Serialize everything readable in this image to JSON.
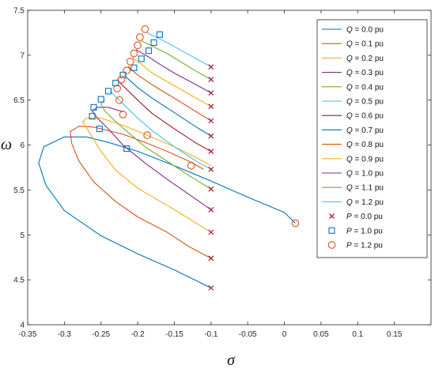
{
  "chart_data": {
    "type": "line",
    "title": "",
    "xlabel": "σ",
    "ylabel": "ω",
    "xlim": [
      -0.35,
      0.2
    ],
    "ylim": [
      4,
      7.5
    ],
    "x_ticks": [
      -0.35,
      -0.3,
      -0.25,
      -0.2,
      -0.15,
      -0.1,
      -0.05,
      0,
      0.05,
      0.1,
      0.15
    ],
    "x_tick_labels": [
      "-0.35",
      "-0.3",
      "-0.25",
      "-0.2",
      "-0.15",
      "-0.1",
      "-0.05",
      "0",
      "0.05",
      "0.1",
      "0.15"
    ],
    "y_ticks": [
      4,
      4.5,
      5,
      5.5,
      6,
      6.5,
      7,
      7.5
    ],
    "y_tick_labels": [
      "4",
      "4.5",
      "5",
      "5.5",
      "6",
      "6.5",
      "7",
      "7.5"
    ],
    "grid": false,
    "legend_position": "top-right",
    "series": [
      {
        "name": "Q = 0.0 pu",
        "legend_symbol": "Q",
        "legend_rest": " = 0.0 pu",
        "color": "#0072bd",
        "points": [
          [
            -0.1,
            4.41
          ],
          [
            -0.12,
            4.49
          ],
          [
            -0.15,
            4.61
          ],
          [
            -0.2,
            4.79
          ],
          [
            -0.25,
            4.99
          ],
          [
            -0.3,
            5.27
          ],
          [
            -0.325,
            5.55
          ],
          [
            -0.335,
            5.8
          ],
          [
            -0.328,
            5.98
          ],
          [
            -0.3,
            6.09
          ],
          [
            -0.27,
            6.09
          ],
          [
            -0.24,
            6.03
          ],
          [
            -0.2,
            5.93
          ],
          [
            -0.15,
            5.77
          ],
          [
            -0.1,
            5.6
          ],
          [
            -0.05,
            5.42
          ],
          [
            0,
            5.25
          ],
          [
            0.015,
            5.13
          ]
        ]
      },
      {
        "name": "Q = 0.1 pu",
        "legend_symbol": "Q",
        "legend_rest": " = 0.1 pu",
        "color": "#d95319",
        "points": [
          [
            -0.1,
            4.74
          ],
          [
            -0.13,
            4.87
          ],
          [
            -0.16,
            5.03
          ],
          [
            -0.2,
            5.2
          ],
          [
            -0.23,
            5.37
          ],
          [
            -0.26,
            5.59
          ],
          [
            -0.28,
            5.82
          ],
          [
            -0.29,
            6.02
          ],
          [
            -0.292,
            6.15
          ],
          [
            -0.28,
            6.21
          ],
          [
            -0.26,
            6.2
          ],
          [
            -0.22,
            6.12
          ],
          [
            -0.19,
            6.03
          ],
          [
            -0.16,
            5.93
          ],
          [
            -0.13,
            5.82
          ],
          [
            -0.11,
            5.73
          ]
        ]
      },
      {
        "name": "Q = 0.2 pu",
        "legend_symbol": "Q",
        "legend_rest": " = 0.2 pu",
        "color": "#edb120",
        "points": [
          [
            -0.1,
            5.03
          ],
          [
            -0.12,
            5.13
          ],
          [
            -0.16,
            5.33
          ],
          [
            -0.2,
            5.52
          ],
          [
            -0.23,
            5.72
          ],
          [
            -0.25,
            5.93
          ],
          [
            -0.265,
            6.13
          ],
          [
            -0.275,
            6.26
          ],
          [
            -0.27,
            6.3
          ],
          [
            -0.25,
            6.3
          ],
          [
            -0.22,
            6.22
          ],
          [
            -0.19,
            6.12
          ],
          [
            -0.15,
            5.98
          ],
          [
            -0.12,
            5.86
          ],
          [
            -0.1,
            5.77
          ]
        ]
      },
      {
        "name": "Q = 0.3 pu",
        "legend_symbol": "Q",
        "legend_rest": " = 0.3 pu",
        "color": "#7e2f8e",
        "points": [
          [
            -0.1,
            5.28
          ],
          [
            -0.13,
            5.45
          ],
          [
            -0.16,
            5.62
          ],
          [
            -0.19,
            5.8
          ],
          [
            -0.22,
            6.0
          ],
          [
            -0.24,
            6.18
          ],
          [
            -0.255,
            6.3
          ],
          [
            -0.262,
            6.38
          ],
          [
            -0.255,
            6.42
          ],
          [
            -0.24,
            6.42
          ],
          [
            -0.22,
            6.37
          ]
        ]
      },
      {
        "name": "Q = 0.4 pu",
        "legend_symbol": "Q",
        "legend_rest": " = 0.4 pu",
        "color": "#77ac30",
        "points": [
          [
            -0.1,
            5.51
          ],
          [
            -0.13,
            5.66
          ],
          [
            -0.16,
            5.82
          ],
          [
            -0.19,
            5.98
          ],
          [
            -0.21,
            6.12
          ],
          [
            -0.23,
            6.26
          ],
          [
            -0.245,
            6.38
          ],
          [
            -0.25,
            6.46
          ],
          [
            -0.245,
            6.5
          ]
        ]
      },
      {
        "name": "Q = 0.5 pu",
        "legend_symbol": "Q",
        "legend_rest": " = 0.5 pu",
        "color": "#4dbeee",
        "points": [
          [
            -0.1,
            5.73
          ],
          [
            -0.12,
            5.82
          ],
          [
            -0.15,
            5.98
          ],
          [
            -0.18,
            6.16
          ],
          [
            -0.2,
            6.3
          ],
          [
            -0.22,
            6.46
          ],
          [
            -0.235,
            6.58
          ],
          [
            -0.238,
            6.6
          ]
        ]
      },
      {
        "name": "Q = 0.6 pu",
        "legend_symbol": "Q",
        "legend_rest": " = 0.6 pu",
        "color": "#a2142f",
        "points": [
          [
            -0.1,
            5.93
          ],
          [
            -0.12,
            6.02
          ],
          [
            -0.15,
            6.18
          ],
          [
            -0.18,
            6.35
          ],
          [
            -0.2,
            6.5
          ],
          [
            -0.215,
            6.62
          ],
          [
            -0.225,
            6.7
          ],
          [
            -0.228,
            6.73
          ]
        ]
      },
      {
        "name": "Q = 0.7 pu",
        "legend_symbol": "Q",
        "legend_rest": " = 0.7 pu",
        "color": "#0072bd",
        "points": [
          [
            -0.1,
            6.1
          ],
          [
            -0.12,
            6.2
          ],
          [
            -0.15,
            6.36
          ],
          [
            -0.18,
            6.52
          ],
          [
            -0.2,
            6.64
          ],
          [
            -0.215,
            6.75
          ],
          [
            -0.218,
            6.78
          ]
        ]
      },
      {
        "name": "Q = 0.8 pu",
        "legend_symbol": "Q",
        "legend_rest": " = 0.8 pu",
        "color": "#d95319",
        "points": [
          [
            -0.1,
            6.27
          ],
          [
            -0.12,
            6.37
          ],
          [
            -0.15,
            6.52
          ],
          [
            -0.18,
            6.67
          ],
          [
            -0.2,
            6.78
          ],
          [
            -0.21,
            6.85
          ],
          [
            -0.213,
            6.88
          ]
        ]
      },
      {
        "name": "Q = 0.9 pu",
        "legend_symbol": "Q",
        "legend_rest": " = 0.9 pu",
        "color": "#edb120",
        "points": [
          [
            -0.1,
            6.43
          ],
          [
            -0.12,
            6.52
          ],
          [
            -0.15,
            6.66
          ],
          [
            -0.18,
            6.8
          ],
          [
            -0.195,
            6.9
          ],
          [
            -0.205,
            6.96
          ],
          [
            -0.207,
            6.98
          ]
        ]
      },
      {
        "name": "Q = 1.0 pu",
        "legend_symbol": "Q",
        "legend_rest": " = 1.0 pu",
        "color": "#7e2f8e",
        "points": [
          [
            -0.1,
            6.58
          ],
          [
            -0.12,
            6.67
          ],
          [
            -0.15,
            6.8
          ],
          [
            -0.17,
            6.9
          ],
          [
            -0.185,
            6.98
          ],
          [
            -0.2,
            7.05
          ],
          [
            -0.202,
            7.06
          ]
        ]
      },
      {
        "name": "Q = 1.1 pu",
        "legend_symbol": "Q",
        "legend_rest": " = 1.1 pu",
        "color": "#77ac30",
        "points": [
          [
            -0.1,
            6.73
          ],
          [
            -0.12,
            6.82
          ],
          [
            -0.14,
            6.92
          ],
          [
            -0.16,
            7.02
          ],
          [
            -0.18,
            7.1
          ],
          [
            -0.19,
            7.14
          ],
          [
            -0.195,
            7.16
          ]
        ]
      },
      {
        "name": "Q = 1.2 pu",
        "legend_symbol": "Q",
        "legend_rest": " = 1.2 pu",
        "color": "#4dbeee",
        "points": [
          [
            -0.1,
            6.87
          ],
          [
            -0.12,
            6.96
          ],
          [
            -0.14,
            7.05
          ],
          [
            -0.16,
            7.14
          ],
          [
            -0.175,
            7.2
          ],
          [
            -0.185,
            7.24
          ],
          [
            -0.188,
            7.26
          ]
        ]
      }
    ],
    "markers": [
      {
        "name": "P = 0.0 pu",
        "legend_symbol": "P",
        "legend_rest": " = 0.0 pu",
        "shape": "x",
        "color": "#a2142f",
        "points": [
          [
            -0.1,
            4.41
          ],
          [
            -0.1,
            4.74
          ],
          [
            -0.1,
            5.03
          ],
          [
            -0.1,
            5.28
          ],
          [
            -0.1,
            5.51
          ],
          [
            -0.1,
            5.73
          ],
          [
            -0.1,
            5.93
          ],
          [
            -0.1,
            6.1
          ],
          [
            -0.1,
            6.27
          ],
          [
            -0.1,
            6.43
          ],
          [
            -0.1,
            6.58
          ],
          [
            -0.1,
            6.73
          ],
          [
            -0.1,
            6.87
          ]
        ]
      },
      {
        "name": "P = 1.0 pu",
        "legend_symbol": "P",
        "legend_rest": " = 1.0 pu",
        "shape": "square",
        "color": "#0072bd",
        "points": [
          [
            -0.252,
            6.18
          ],
          [
            -0.215,
            5.96
          ],
          [
            -0.262,
            6.32
          ],
          [
            -0.26,
            6.42
          ],
          [
            -0.25,
            6.51
          ],
          [
            -0.24,
            6.6
          ],
          [
            -0.23,
            6.69
          ],
          [
            -0.22,
            6.78
          ],
          [
            -0.205,
            6.86
          ],
          [
            -0.195,
            6.96
          ],
          [
            -0.185,
            7.05
          ],
          [
            -0.178,
            7.14
          ],
          [
            -0.17,
            7.23
          ]
        ]
      },
      {
        "name": "P = 1.2 pu",
        "legend_symbol": "P",
        "legend_rest": " = 1.2 pu",
        "shape": "circle",
        "color": "#d95319",
        "points": [
          [
            0.015,
            5.13
          ],
          [
            -0.127,
            5.77
          ],
          [
            -0.187,
            6.11
          ],
          [
            -0.22,
            6.34
          ],
          [
            -0.225,
            6.5
          ],
          [
            -0.228,
            6.63
          ],
          [
            -0.222,
            6.73
          ],
          [
            -0.215,
            6.83
          ],
          [
            -0.21,
            6.93
          ],
          [
            -0.205,
            7.02
          ],
          [
            -0.2,
            7.11
          ],
          [
            -0.197,
            7.2
          ],
          [
            -0.19,
            7.29
          ]
        ]
      }
    ]
  }
}
